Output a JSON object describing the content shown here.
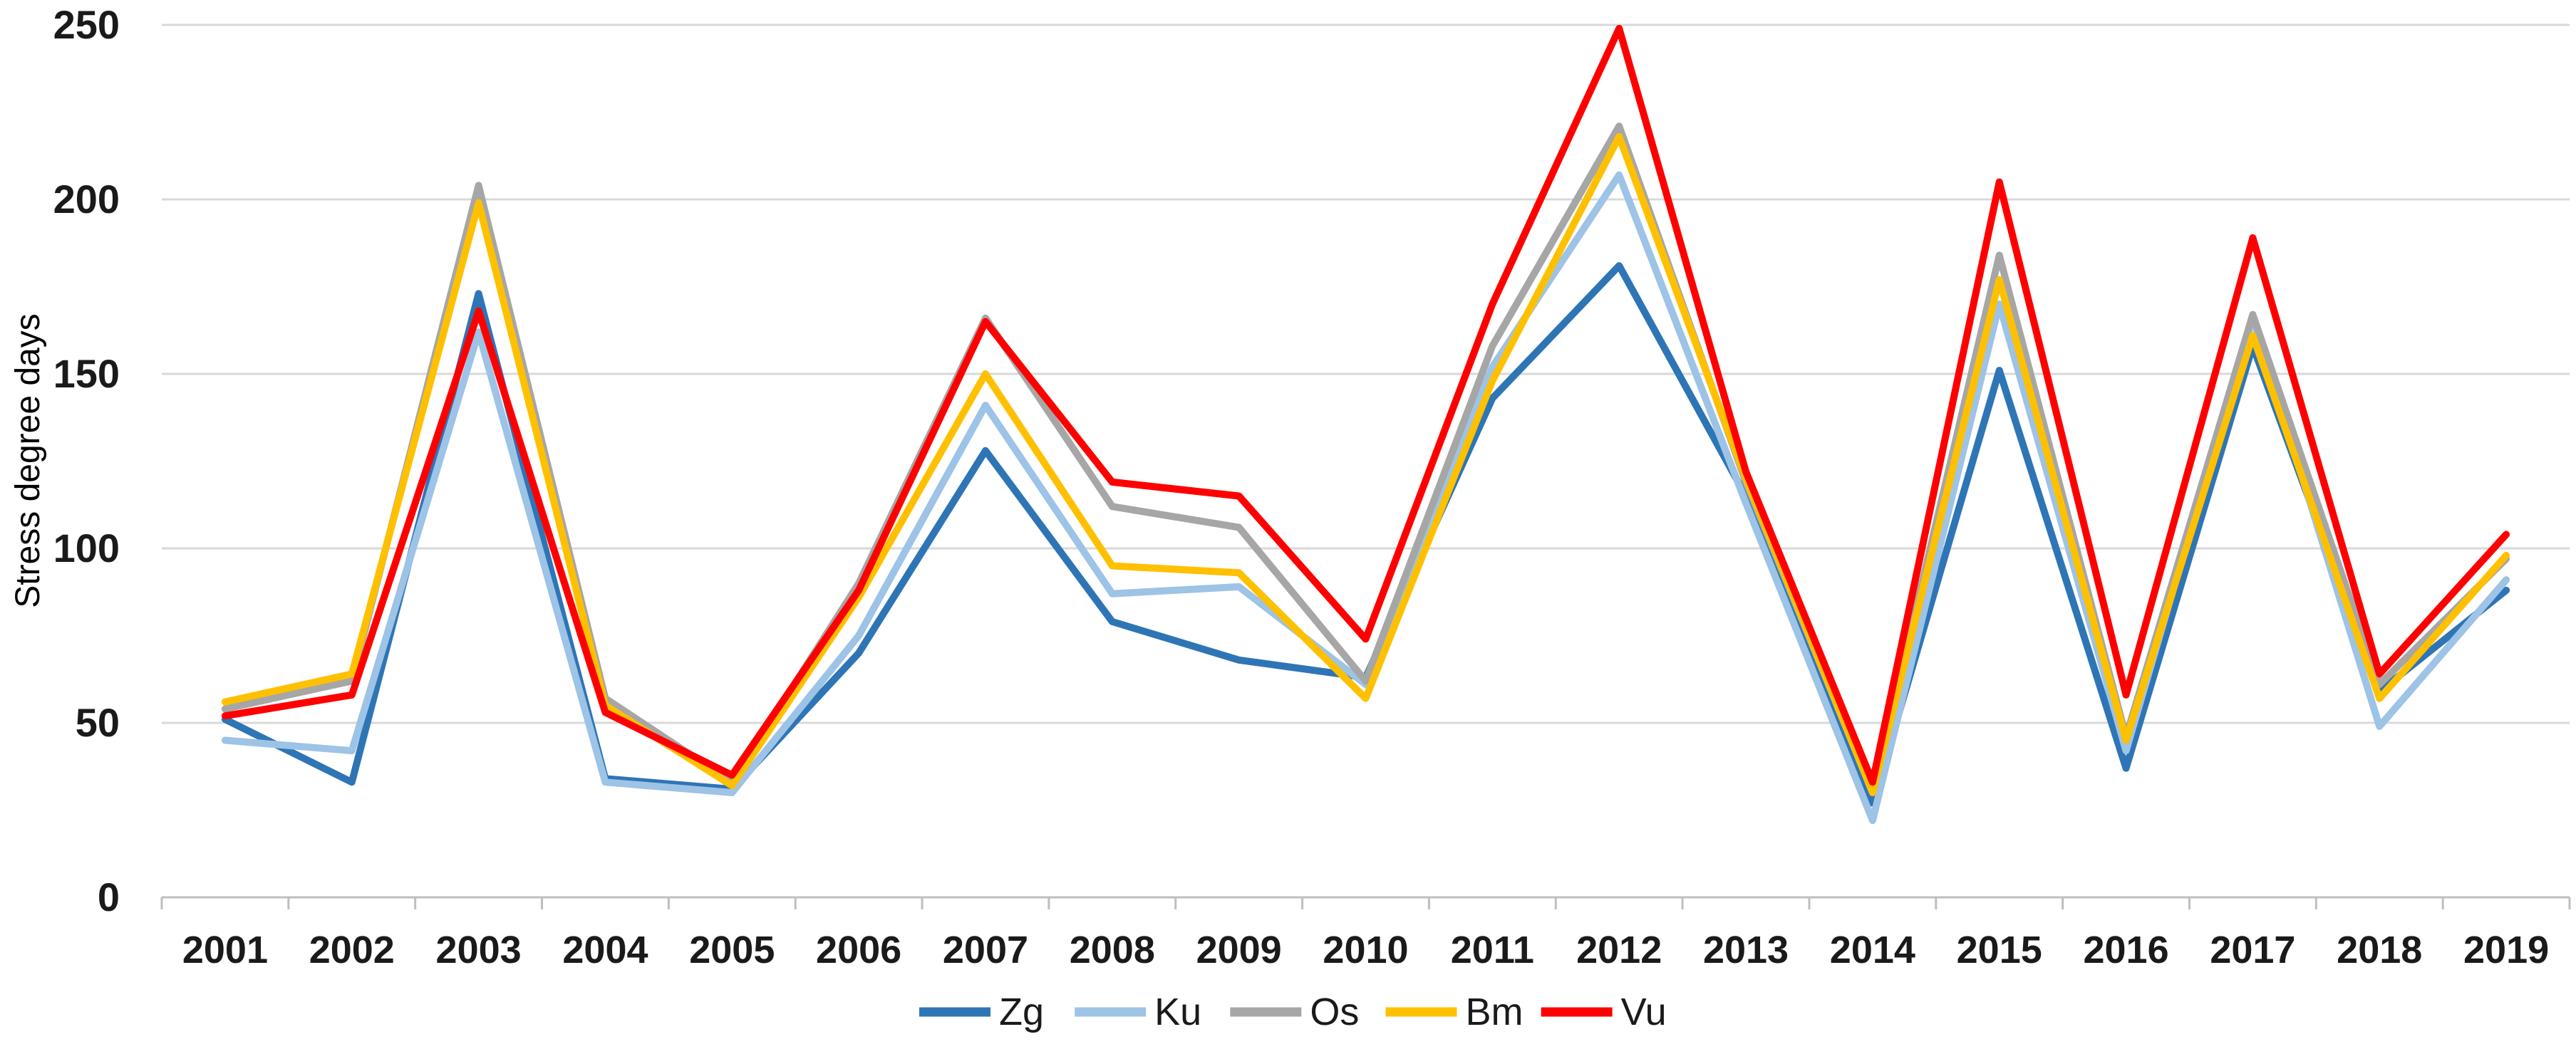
{
  "chart_data": {
    "type": "line",
    "title": "",
    "ylabel": "Stress degree days",
    "xlabel": "",
    "x": [
      "2001",
      "2002",
      "2003",
      "2004",
      "2005",
      "2006",
      "2007",
      "2008",
      "2009",
      "2010",
      "2011",
      "2012",
      "2013",
      "2014",
      "2015",
      "2016",
      "2017",
      "2018",
      "2019"
    ],
    "y_ticks": [
      0,
      50,
      100,
      150,
      200,
      250
    ],
    "ylim": [
      0,
      250
    ],
    "grid": "horizontal",
    "legend_position": "bottom-center",
    "series": [
      {
        "name": "Zg",
        "color": "#2E75B6",
        "values": [
          51,
          33,
          173,
          34,
          31,
          70,
          128,
          79,
          68,
          63,
          143,
          181,
          115,
          27,
          151,
          37,
          158,
          59,
          88
        ]
      },
      {
        "name": "Ku",
        "color": "#9DC3E6",
        "values": [
          45,
          42,
          162,
          33,
          30,
          75,
          141,
          87,
          89,
          61,
          152,
          207,
          113,
          22,
          170,
          42,
          166,
          49,
          91
        ]
      },
      {
        "name": "Os",
        "color": "#A6A6A6",
        "values": [
          54,
          62,
          204,
          57,
          33,
          90,
          166,
          112,
          106,
          62,
          158,
          221,
          119,
          30,
          184,
          46,
          167,
          61,
          97
        ]
      },
      {
        "name": "Bm",
        "color": "#FFC000",
        "values": [
          56,
          64,
          199,
          55,
          32,
          86,
          150,
          95,
          93,
          57,
          148,
          218,
          120,
          30,
          177,
          45,
          161,
          57,
          98
        ]
      },
      {
        "name": "Vu",
        "color": "#FF0000",
        "values": [
          52,
          58,
          168,
          53,
          35,
          88,
          165,
          119,
          115,
          74,
          170,
          249,
          122,
          33,
          205,
          58,
          189,
          64,
          104
        ]
      }
    ],
    "axis_color": "#BFBFBF",
    "gridline_color": "#D9D9D9",
    "text_color": "#1a1a1a"
  }
}
